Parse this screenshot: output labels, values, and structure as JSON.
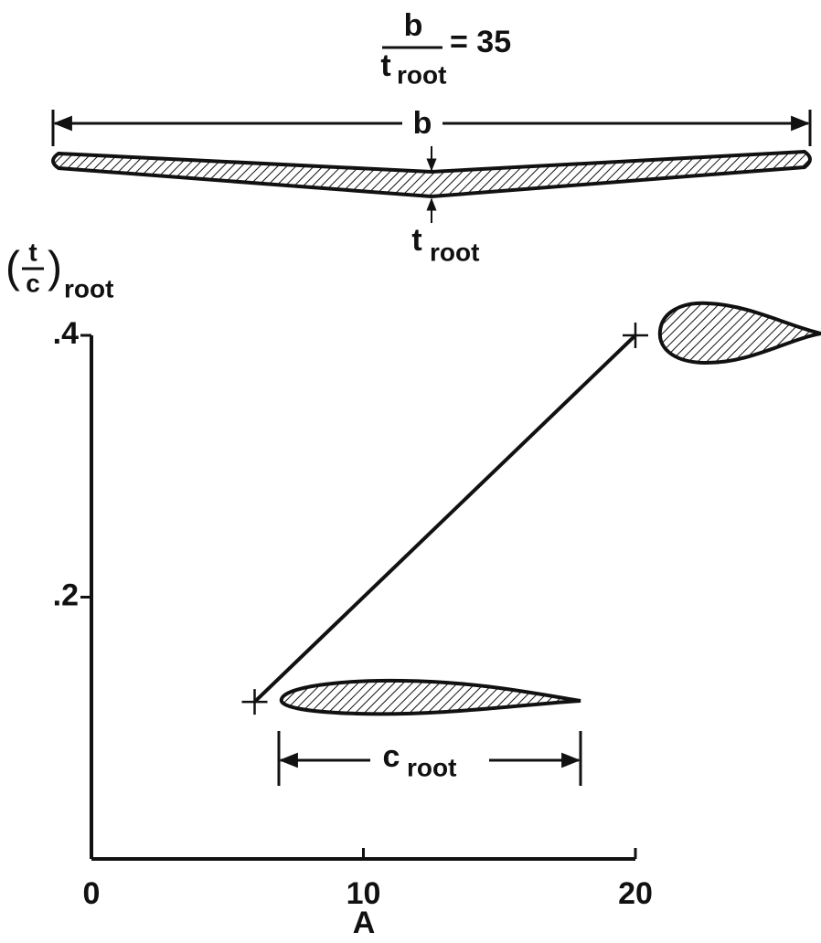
{
  "chart_data": {
    "type": "line",
    "x_label": "A",
    "y_label": {
      "numerator": "t",
      "denominator": "c",
      "subscript": "root"
    },
    "annotations": {
      "ratio_numerator": "b",
      "ratio_denominator": "t",
      "ratio_denominator_subscript": "root",
      "ratio_value": "= 35",
      "span": "b",
      "thickness": "t",
      "thickness_subscript": "root",
      "chord": "c",
      "chord_subscript": "root"
    },
    "x": [
      6,
      20
    ],
    "series": [
      {
        "color": "#111111",
        "values": [
          0.12,
          0.4
        ]
      }
    ],
    "xlim": [
      0,
      20
    ],
    "ylim": [
      0,
      0.4
    ],
    "xticks": [
      0,
      10,
      20
    ],
    "yticks": [
      {
        "value": 0.2,
        "label": ".2"
      },
      {
        "value": 0.4,
        "label": ".4"
      }
    ]
  }
}
